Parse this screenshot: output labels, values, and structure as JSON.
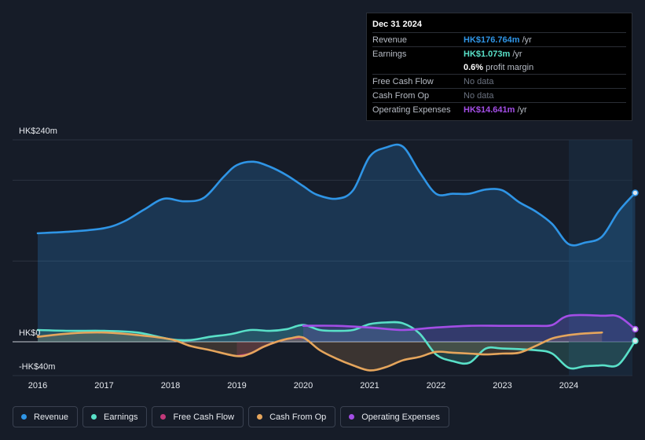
{
  "chart_data": {
    "type": "area",
    "currency": "HK$",
    "ylim": [
      -40,
      240
    ],
    "y_axis_labels": [
      "HK$240m",
      "HK$0",
      "-HK$40m"
    ],
    "x_ticks": [
      {
        "label": "2016",
        "x": 2016.0
      },
      {
        "label": "2017",
        "x": 2017.0
      },
      {
        "label": "2018",
        "x": 2018.0
      },
      {
        "label": "2019",
        "x": 2019.0
      },
      {
        "label": "2020",
        "x": 2020.0
      },
      {
        "label": "2021",
        "x": 2021.0
      },
      {
        "label": "2022",
        "x": 2022.0
      },
      {
        "label": "2023",
        "x": 2023.0
      },
      {
        "label": "2024",
        "x": 2024.0
      }
    ],
    "xlim": [
      2015.6,
      2025.0
    ],
    "forecast_start": 2024.0,
    "series": [
      {
        "name": "Revenue",
        "color": "#2f95e6",
        "fill": true,
        "points": [
          [
            2016.0,
            129
          ],
          [
            2016.5,
            131
          ],
          [
            2017.0,
            135
          ],
          [
            2017.3,
            143
          ],
          [
            2017.6,
            157
          ],
          [
            2017.9,
            170
          ],
          [
            2018.2,
            167
          ],
          [
            2018.5,
            171
          ],
          [
            2018.8,
            196
          ],
          [
            2019.0,
            210
          ],
          [
            2019.25,
            214
          ],
          [
            2019.5,
            208
          ],
          [
            2019.75,
            198
          ],
          [
            2020.0,
            185
          ],
          [
            2020.2,
            175
          ],
          [
            2020.5,
            170
          ],
          [
            2020.75,
            180
          ],
          [
            2021.0,
            220
          ],
          [
            2021.25,
            231
          ],
          [
            2021.5,
            232
          ],
          [
            2021.75,
            202
          ],
          [
            2022.0,
            176
          ],
          [
            2022.25,
            176
          ],
          [
            2022.5,
            176
          ],
          [
            2022.75,
            181
          ],
          [
            2023.0,
            180
          ],
          [
            2023.25,
            166
          ],
          [
            2023.5,
            155
          ],
          [
            2023.75,
            140
          ],
          [
            2024.0,
            116
          ],
          [
            2024.25,
            118
          ],
          [
            2024.5,
            125
          ],
          [
            2024.75,
            155
          ],
          [
            2025.0,
            177
          ]
        ]
      },
      {
        "name": "Earnings",
        "color": "#59e0c8",
        "fill": true,
        "points": [
          [
            2016.0,
            14
          ],
          [
            2016.5,
            13
          ],
          [
            2017.0,
            13
          ],
          [
            2017.5,
            11
          ],
          [
            2018.0,
            3
          ],
          [
            2018.3,
            2
          ],
          [
            2018.6,
            6
          ],
          [
            2018.9,
            9
          ],
          [
            2019.2,
            14
          ],
          [
            2019.5,
            13
          ],
          [
            2019.75,
            15
          ],
          [
            2020.0,
            20
          ],
          [
            2020.25,
            14
          ],
          [
            2020.5,
            13
          ],
          [
            2020.75,
            14
          ],
          [
            2021.0,
            21
          ],
          [
            2021.25,
            23
          ],
          [
            2021.5,
            22
          ],
          [
            2021.75,
            10
          ],
          [
            2022.0,
            -15
          ],
          [
            2022.25,
            -23
          ],
          [
            2022.5,
            -25
          ],
          [
            2022.75,
            -8
          ],
          [
            2023.0,
            -8
          ],
          [
            2023.5,
            -10
          ],
          [
            2023.75,
            -14
          ],
          [
            2024.0,
            -31
          ],
          [
            2024.25,
            -29
          ],
          [
            2024.5,
            -28
          ],
          [
            2024.75,
            -27
          ],
          [
            2025.0,
            1
          ]
        ]
      },
      {
        "name": "Free Cash Flow",
        "color": "#c2397a",
        "fill": true,
        "points": [
          [
            2019.0,
            -17
          ],
          [
            2019.2,
            -14
          ],
          [
            2019.4,
            -6
          ],
          [
            2019.6,
            0
          ],
          [
            2019.8,
            4
          ],
          [
            2020.0,
            5
          ]
        ]
      },
      {
        "name": "Cash From Op",
        "color": "#e5a55c",
        "fill": true,
        "points": [
          [
            2016.0,
            6
          ],
          [
            2016.5,
            10
          ],
          [
            2017.0,
            11
          ],
          [
            2017.5,
            8
          ],
          [
            2018.0,
            3
          ],
          [
            2018.3,
            -5
          ],
          [
            2018.6,
            -10
          ],
          [
            2019.0,
            -17
          ],
          [
            2019.2,
            -14
          ],
          [
            2019.4,
            -6
          ],
          [
            2019.6,
            0
          ],
          [
            2019.8,
            4
          ],
          [
            2020.0,
            5
          ],
          [
            2020.25,
            -10
          ],
          [
            2020.5,
            -20
          ],
          [
            2020.75,
            -28
          ],
          [
            2021.0,
            -34
          ],
          [
            2021.25,
            -30
          ],
          [
            2021.5,
            -22
          ],
          [
            2021.75,
            -18
          ],
          [
            2022.0,
            -12
          ],
          [
            2022.25,
            -13
          ],
          [
            2022.5,
            -14
          ],
          [
            2022.75,
            -15
          ],
          [
            2023.0,
            -14
          ],
          [
            2023.25,
            -13
          ],
          [
            2023.5,
            -5
          ],
          [
            2023.75,
            4
          ],
          [
            2024.0,
            8
          ],
          [
            2024.25,
            10
          ],
          [
            2024.5,
            11
          ]
        ]
      },
      {
        "name": "Operating Expenses",
        "color": "#a34ee6",
        "fill": true,
        "points": [
          [
            2020.0,
            19
          ],
          [
            2020.5,
            19
          ],
          [
            2021.0,
            17
          ],
          [
            2021.5,
            14
          ],
          [
            2022.0,
            17
          ],
          [
            2022.5,
            19
          ],
          [
            2023.0,
            19
          ],
          [
            2023.5,
            19
          ],
          [
            2023.75,
            20
          ],
          [
            2024.0,
            31
          ],
          [
            2024.5,
            31
          ],
          [
            2024.75,
            30
          ],
          [
            2025.0,
            15
          ]
        ]
      }
    ]
  },
  "tooltip": {
    "date": "Dec 31 2024",
    "rows": [
      {
        "label": "Revenue",
        "value": "HK$176.764m",
        "unit": "/yr",
        "color": "#2f95e6"
      },
      {
        "label": "Earnings",
        "value": "HK$1.073m",
        "unit": "/yr",
        "color": "#59e0c8"
      },
      {
        "label": "",
        "value": "0.6%",
        "unit": "profit margin",
        "color": "#ffffff",
        "sub": true
      },
      {
        "label": "Free Cash Flow",
        "value": "No data",
        "unit": "",
        "color": "#6b7280",
        "nodata": true
      },
      {
        "label": "Cash From Op",
        "value": "No data",
        "unit": "",
        "color": "#6b7280",
        "nodata": true
      },
      {
        "label": "Operating Expenses",
        "value": "HK$14.641m",
        "unit": "/yr",
        "color": "#a34ee6"
      }
    ]
  },
  "legend": [
    {
      "label": "Revenue",
      "color": "#2f95e6"
    },
    {
      "label": "Earnings",
      "color": "#59e0c8"
    },
    {
      "label": "Free Cash Flow",
      "color": "#c2397a"
    },
    {
      "label": "Cash From Op",
      "color": "#e5a55c"
    },
    {
      "label": "Operating Expenses",
      "color": "#a34ee6"
    }
  ]
}
